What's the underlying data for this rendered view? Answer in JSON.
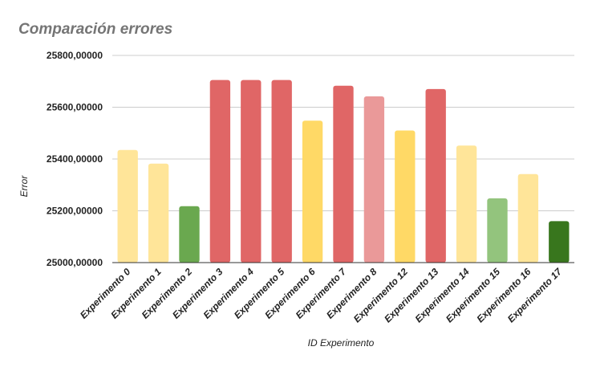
{
  "chart_data": {
    "type": "bar",
    "title": "Comparación errores",
    "xlabel": "ID Experimento",
    "ylabel": "Error",
    "ylim": [
      25000,
      25800
    ],
    "yticks": [
      25000,
      25200,
      25400,
      25600,
      25800
    ],
    "ytick_labels": [
      "25000,00000",
      "25200,00000",
      "25400,00000",
      "25600,00000",
      "25800,00000"
    ],
    "grid": true,
    "legend": "none",
    "categories": [
      "Experimento 0",
      "Experimento 1",
      "Experimento 2",
      "Experimento 3",
      "Experimento 4",
      "Experimento 5",
      "Experimento 6",
      "Experimento 7",
      "Experimento 8",
      "Experimento 12",
      "Experimento 13",
      "Experimento 14",
      "Experimento 15",
      "Experimento 16",
      "Experimento 17"
    ],
    "values": [
      25435,
      25382,
      25218,
      25705,
      25705,
      25705,
      25548,
      25683,
      25642,
      25510,
      25670,
      25452,
      25248,
      25342,
      25160
    ],
    "colors": [
      "#ffe599",
      "#ffe599",
      "#6aa84f",
      "#e06666",
      "#e06666",
      "#e06666",
      "#ffd966",
      "#e06666",
      "#ea9999",
      "#ffd966",
      "#e06666",
      "#ffe599",
      "#93c47d",
      "#ffe599",
      "#38761d"
    ]
  }
}
